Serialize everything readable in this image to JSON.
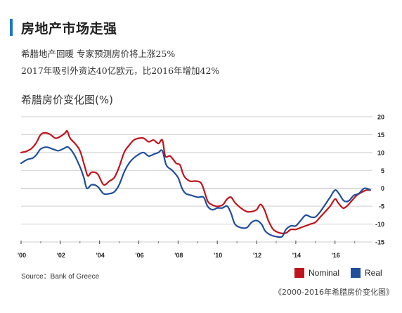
{
  "header": {
    "title": "房地产市场走强",
    "accent_color": "#1f75c8"
  },
  "subtitle_lines": [
    "希腊地产回暖 专家预测房价将上涨25%",
    "2017年吸引外资达40亿欧元，比2016年增加42%"
  ],
  "source": "Source：Bank of Greece",
  "caption": "《2000-2016年希腊房价变化图》",
  "chart_data": {
    "type": "line",
    "title": "希腊房价变化图(%)",
    "xlabel": "",
    "ylabel": "",
    "xlim": [
      2000,
      2017.8
    ],
    "ylim": [
      -15,
      20
    ],
    "y_ticks": [
      20,
      15,
      10,
      5,
      0,
      -5,
      -10,
      -15
    ],
    "y_tick_labels": [
      "20",
      "15",
      "10",
      "5",
      "0",
      "-5",
      "-10",
      "-15"
    ],
    "x_ticks": [
      2000,
      2002,
      2004,
      2006,
      2008,
      2010,
      2012,
      2014,
      2016
    ],
    "x_tick_labels": [
      "'00",
      "'02",
      "'04",
      "'06",
      "'08",
      "'10",
      "'12",
      "'14",
      "'16"
    ],
    "grid": "horizontal",
    "axis_position": "right",
    "legend_position": "bottom-right",
    "series": [
      {
        "name": "Nominal",
        "color": "#c0141c",
        "points": [
          [
            2000.0,
            10
          ],
          [
            2000.25,
            10.3
          ],
          [
            2000.5,
            11
          ],
          [
            2000.75,
            12.5
          ],
          [
            2001.0,
            15
          ],
          [
            2001.25,
            15.5
          ],
          [
            2001.5,
            15
          ],
          [
            2001.75,
            14
          ],
          [
            2002.0,
            14.5
          ],
          [
            2002.25,
            15.5
          ],
          [
            2002.35,
            16
          ],
          [
            2002.5,
            14
          ],
          [
            2002.75,
            12.5
          ],
          [
            2003.0,
            10.5
          ],
          [
            2003.25,
            6
          ],
          [
            2003.4,
            3.5
          ],
          [
            2003.6,
            4.5
          ],
          [
            2003.9,
            4
          ],
          [
            2004.2,
            1
          ],
          [
            2004.5,
            2
          ],
          [
            2004.75,
            3
          ],
          [
            2005.0,
            6
          ],
          [
            2005.25,
            10
          ],
          [
            2005.5,
            12
          ],
          [
            2005.75,
            13.5
          ],
          [
            2006.0,
            14
          ],
          [
            2006.25,
            14
          ],
          [
            2006.5,
            13
          ],
          [
            2006.75,
            13.5
          ],
          [
            2007.0,
            12.5
          ],
          [
            2007.2,
            13.5
          ],
          [
            2007.35,
            9
          ],
          [
            2007.6,
            9
          ],
          [
            2007.9,
            7
          ],
          [
            2008.1,
            6.5
          ],
          [
            2008.3,
            3.5
          ],
          [
            2008.6,
            2
          ],
          [
            2008.9,
            2
          ],
          [
            2009.2,
            1.2
          ],
          [
            2009.5,
            -3.5
          ],
          [
            2009.7,
            -4.5
          ],
          [
            2009.9,
            -5
          ],
          [
            2010.1,
            -5
          ],
          [
            2010.3,
            -4.5
          ],
          [
            2010.5,
            -3
          ],
          [
            2010.7,
            -2.5
          ],
          [
            2010.9,
            -4
          ],
          [
            2011.2,
            -5.5
          ],
          [
            2011.5,
            -6.5
          ],
          [
            2011.75,
            -6.5
          ],
          [
            2012.0,
            -6
          ],
          [
            2012.2,
            -4.5
          ],
          [
            2012.4,
            -6
          ],
          [
            2012.6,
            -9
          ],
          [
            2012.85,
            -11.5
          ],
          [
            2013.2,
            -12.5
          ],
          [
            2013.5,
            -12.5
          ],
          [
            2013.75,
            -11.5
          ],
          [
            2014.0,
            -11.5
          ],
          [
            2014.25,
            -11
          ],
          [
            2014.5,
            -10.5
          ],
          [
            2014.75,
            -10
          ],
          [
            2015.0,
            -9.5
          ],
          [
            2015.25,
            -8
          ],
          [
            2015.5,
            -6.5
          ],
          [
            2015.75,
            -5
          ],
          [
            2016.0,
            -3
          ],
          [
            2016.15,
            -4
          ],
          [
            2016.4,
            -5.5
          ],
          [
            2016.6,
            -5
          ],
          [
            2016.85,
            -3.5
          ],
          [
            2017.1,
            -2
          ],
          [
            2017.4,
            -1
          ],
          [
            2017.6,
            -0.5
          ],
          [
            2017.8,
            -0.5
          ]
        ]
      },
      {
        "name": "Real",
        "color": "#1f4e9c",
        "points": [
          [
            2000.0,
            7
          ],
          [
            2000.3,
            8
          ],
          [
            2000.6,
            8.5
          ],
          [
            2000.8,
            9.5
          ],
          [
            2001.0,
            11
          ],
          [
            2001.3,
            11.5
          ],
          [
            2001.6,
            11
          ],
          [
            2001.9,
            10.5
          ],
          [
            2002.2,
            11.2
          ],
          [
            2002.4,
            11.5
          ],
          [
            2002.7,
            9.5
          ],
          [
            2003.0,
            6
          ],
          [
            2003.2,
            3
          ],
          [
            2003.35,
            0
          ],
          [
            2003.6,
            1
          ],
          [
            2003.9,
            0.5
          ],
          [
            2004.2,
            -1.5
          ],
          [
            2004.5,
            -1.5
          ],
          [
            2004.75,
            -1
          ],
          [
            2005.0,
            1
          ],
          [
            2005.25,
            4.5
          ],
          [
            2005.5,
            7
          ],
          [
            2005.75,
            8.5
          ],
          [
            2006.0,
            9.5
          ],
          [
            2006.25,
            10
          ],
          [
            2006.5,
            9
          ],
          [
            2006.75,
            9.5
          ],
          [
            2007.0,
            10
          ],
          [
            2007.2,
            10.5
          ],
          [
            2007.4,
            6.5
          ],
          [
            2007.7,
            5
          ],
          [
            2008.0,
            3
          ],
          [
            2008.2,
            0
          ],
          [
            2008.4,
            -1.5
          ],
          [
            2008.7,
            -2
          ],
          [
            2009.0,
            -2.5
          ],
          [
            2009.3,
            -2.5
          ],
          [
            2009.5,
            -5
          ],
          [
            2009.75,
            -6
          ],
          [
            2010.0,
            -5.5
          ],
          [
            2010.25,
            -5.5
          ],
          [
            2010.5,
            -5
          ],
          [
            2010.7,
            -7
          ],
          [
            2010.9,
            -10
          ],
          [
            2011.2,
            -11
          ],
          [
            2011.5,
            -11
          ],
          [
            2011.75,
            -9.5
          ],
          [
            2012.0,
            -9
          ],
          [
            2012.25,
            -10
          ],
          [
            2012.45,
            -12
          ],
          [
            2012.7,
            -13
          ],
          [
            2013.0,
            -13.5
          ],
          [
            2013.3,
            -13.5
          ],
          [
            2013.5,
            -11.5
          ],
          [
            2013.75,
            -10.5
          ],
          [
            2014.0,
            -10.5
          ],
          [
            2014.25,
            -9
          ],
          [
            2014.5,
            -7.5
          ],
          [
            2014.75,
            -8
          ],
          [
            2015.0,
            -8
          ],
          [
            2015.25,
            -6.5
          ],
          [
            2015.5,
            -4.5
          ],
          [
            2015.75,
            -2.5
          ],
          [
            2016.0,
            -0.5
          ],
          [
            2016.2,
            -1.5
          ],
          [
            2016.45,
            -3.5
          ],
          [
            2016.7,
            -3.5
          ],
          [
            2016.95,
            -2
          ],
          [
            2017.2,
            -1.5
          ],
          [
            2017.5,
            0
          ],
          [
            2017.8,
            -0.5
          ]
        ]
      }
    ]
  }
}
